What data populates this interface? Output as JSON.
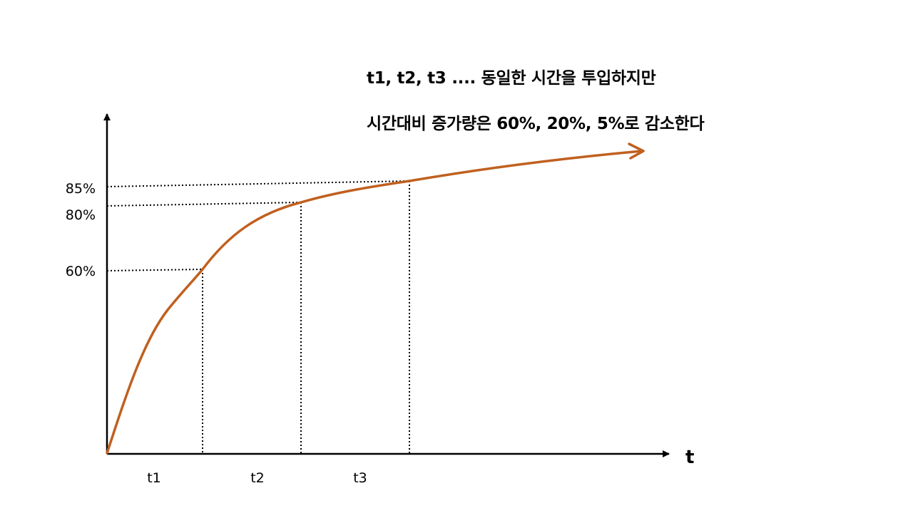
{
  "captions": {
    "line1": "t1, t2, t3 .... 동일한 시간을 투입하지만",
    "line2": "시간대비 증가량은 60%, 20%, 5%로 감소한다"
  },
  "axes": {
    "x_name": "t"
  },
  "x_markers": [
    {
      "label": "t1"
    },
    {
      "label": "t2"
    },
    {
      "label": "t3"
    }
  ],
  "y_markers": [
    {
      "label": "85%",
      "value": 85
    },
    {
      "label": "80%",
      "value": 80
    },
    {
      "label": "60%",
      "value": 60
    }
  ],
  "colors": {
    "curve": "#c0601f",
    "axis": "#000000",
    "guide": "#000000"
  }
}
